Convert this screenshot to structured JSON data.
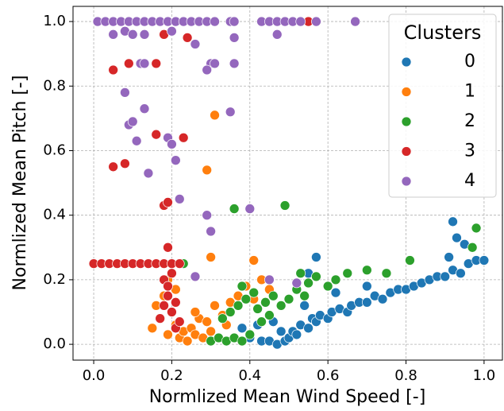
{
  "chart_data": {
    "type": "scatter",
    "x_label": "Normlized Mean Wind Speed [-]",
    "y_label": "Normlized Mean Pitch [-]",
    "xlim": [
      -0.053,
      1.047
    ],
    "ylim": [
      -0.049,
      1.047
    ],
    "xticks": [
      {
        "value": 0,
        "label": "0.0"
      },
      {
        "value": 0.2,
        "label": "0.2"
      },
      {
        "value": 0.4,
        "label": "0.4"
      },
      {
        "value": 0.6,
        "label": "0.6"
      },
      {
        "value": 0.8,
        "label": "0.8"
      },
      {
        "value": 1,
        "label": "1.0"
      }
    ],
    "yticks": [
      {
        "value": 0,
        "label": "0.0"
      },
      {
        "value": 0.2,
        "label": "0.2"
      },
      {
        "value": 0.4,
        "label": "0.4"
      },
      {
        "value": 0.6,
        "label": "0.6"
      },
      {
        "value": 0.8,
        "label": "0.8"
      },
      {
        "value": 1,
        "label": "1.0"
      }
    ],
    "grid": true,
    "legend": "upper right",
    "legend_title": "Clusters",
    "series": [
      {
        "name": "0",
        "color": "#1f77b4",
        "x": [
          0.4,
          0.43,
          0.45,
          0.47,
          0.49,
          0.5,
          0.51,
          0.52,
          0.53,
          0.55,
          0.56,
          0.57,
          0.58,
          0.6,
          0.61,
          0.63,
          0.65,
          0.66,
          0.68,
          0.7,
          0.72,
          0.74,
          0.76,
          0.78,
          0.8,
          0.82,
          0.84,
          0.86,
          0.88,
          0.9,
          0.92,
          0.94,
          0.96,
          0.98,
          1.0,
          0.92,
          0.93,
          0.57,
          0.55,
          0.38,
          0.42,
          0.48,
          0.54,
          0.62,
          0.7,
          0.91,
          0.95,
          0.46
        ],
        "values": [
          0.02,
          0.01,
          0.01,
          0.0,
          0.01,
          0.02,
          0.04,
          0.03,
          0.06,
          0.05,
          0.08,
          0.07,
          0.09,
          0.08,
          0.1,
          0.11,
          0.1,
          0.12,
          0.13,
          0.13,
          0.15,
          0.14,
          0.16,
          0.17,
          0.17,
          0.18,
          0.19,
          0.2,
          0.21,
          0.21,
          0.23,
          0.22,
          0.25,
          0.26,
          0.26,
          0.38,
          0.33,
          0.27,
          0.22,
          0.05,
          0.06,
          0.04,
          0.12,
          0.16,
          0.18,
          0.27,
          0.31,
          0.07
        ]
      },
      {
        "name": "1",
        "color": "#ff7f0e",
        "x": [
          0.15,
          0.16,
          0.17,
          0.18,
          0.19,
          0.2,
          0.21,
          0.22,
          0.23,
          0.24,
          0.25,
          0.26,
          0.27,
          0.28,
          0.29,
          0.3,
          0.31,
          0.33,
          0.35,
          0.37,
          0.39,
          0.41,
          0.43,
          0.45,
          0.31,
          0.29,
          0.3,
          0.41,
          0.19,
          0.21,
          0.26,
          0.34
        ],
        "values": [
          0.05,
          0.12,
          0.08,
          0.15,
          0.03,
          0.1,
          0.06,
          0.02,
          0.04,
          0.01,
          0.05,
          0.03,
          0.08,
          0.02,
          0.07,
          0.04,
          0.12,
          0.09,
          0.13,
          0.15,
          0.18,
          0.14,
          0.2,
          0.17,
          0.71,
          0.54,
          0.27,
          0.26,
          0.2,
          0.17,
          0.1,
          0.06
        ]
      },
      {
        "name": "2",
        "color": "#2ca02c",
        "x": [
          0.3,
          0.32,
          0.34,
          0.36,
          0.38,
          0.4,
          0.33,
          0.35,
          0.37,
          0.39,
          0.41,
          0.42,
          0.44,
          0.45,
          0.46,
          0.48,
          0.5,
          0.52,
          0.54,
          0.55,
          0.57,
          0.6,
          0.62,
          0.65,
          0.7,
          0.75,
          0.36,
          0.49,
          0.98,
          0.97,
          0.81,
          0.23,
          0.43,
          0.38,
          0.53
        ],
        "values": [
          0.01,
          0.02,
          0.01,
          0.02,
          0.01,
          0.03,
          0.08,
          0.1,
          0.12,
          0.14,
          0.16,
          0.11,
          0.13,
          0.09,
          0.15,
          0.12,
          0.14,
          0.17,
          0.15,
          0.19,
          0.21,
          0.18,
          0.2,
          0.22,
          0.23,
          0.22,
          0.42,
          0.43,
          0.36,
          0.3,
          0.26,
          0.25,
          0.07,
          0.18,
          0.22
        ]
      },
      {
        "name": "3",
        "color": "#d62728",
        "x": [
          0.0,
          0.02,
          0.04,
          0.06,
          0.08,
          0.1,
          0.12,
          0.14,
          0.16,
          0.18,
          0.2,
          0.22,
          0.18,
          0.19,
          0.2,
          0.21,
          0.17,
          0.18,
          0.19,
          0.2,
          0.21,
          0.22,
          0.19,
          0.05,
          0.09,
          0.16,
          0.18,
          0.24,
          0.55,
          0.05,
          0.08,
          0.16,
          0.23,
          0.18,
          0.19
        ],
        "values": [
          0.25,
          0.25,
          0.25,
          0.25,
          0.25,
          0.25,
          0.25,
          0.25,
          0.25,
          0.25,
          0.25,
          0.25,
          0.2,
          0.15,
          0.1,
          0.05,
          0.08,
          0.12,
          0.18,
          0.22,
          0.13,
          0.07,
          0.3,
          0.85,
          0.87,
          0.87,
          0.96,
          0.95,
          1.0,
          0.55,
          0.56,
          0.65,
          0.64,
          0.43,
          0.44
        ]
      },
      {
        "name": "4",
        "color": "#9467bd",
        "x": [
          0.01,
          0.03,
          0.05,
          0.07,
          0.09,
          0.11,
          0.13,
          0.15,
          0.17,
          0.19,
          0.21,
          0.23,
          0.25,
          0.27,
          0.29,
          0.31,
          0.35,
          0.36,
          0.43,
          0.45,
          0.47,
          0.49,
          0.51,
          0.53,
          0.57,
          0.67,
          0.05,
          0.08,
          0.1,
          0.13,
          0.2,
          0.26,
          0.36,
          0.47,
          0.12,
          0.13,
          0.3,
          0.31,
          0.36,
          0.29,
          0.08,
          0.09,
          0.1,
          0.13,
          0.35,
          0.11,
          0.14,
          0.19,
          0.2,
          0.21,
          0.22,
          0.29,
          0.4,
          0.3,
          0.26,
          0.45,
          0.52
        ],
        "values": [
          1.0,
          1.0,
          1.0,
          1.0,
          1.0,
          1.0,
          1.0,
          1.0,
          1.0,
          1.0,
          1.0,
          1.0,
          1.0,
          1.0,
          1.0,
          1.0,
          1.0,
          1.0,
          1.0,
          1.0,
          1.0,
          1.0,
          1.0,
          1.0,
          1.0,
          1.0,
          0.96,
          0.97,
          0.96,
          0.96,
          0.97,
          0.93,
          0.95,
          0.96,
          0.87,
          0.87,
          0.87,
          0.87,
          0.87,
          0.85,
          0.78,
          0.68,
          0.69,
          0.73,
          0.72,
          0.63,
          0.53,
          0.64,
          0.62,
          0.57,
          0.45,
          0.4,
          0.42,
          0.35,
          0.21,
          0.2,
          0.19
        ]
      }
    ]
  }
}
